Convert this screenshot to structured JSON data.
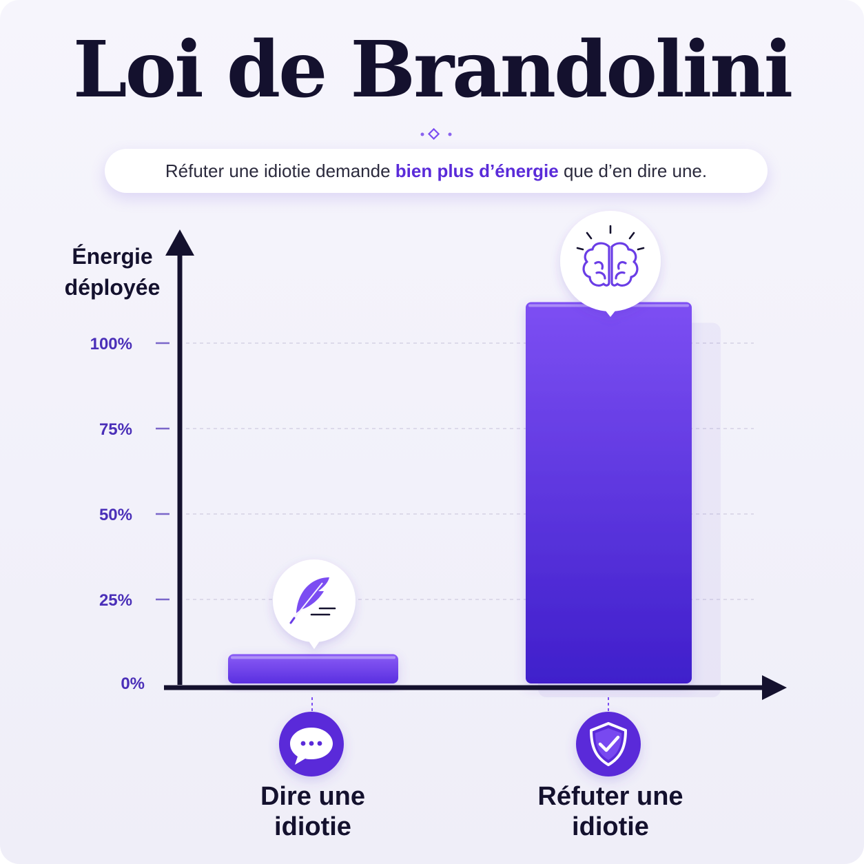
{
  "title": "Loi de Brandolini",
  "subtitle": {
    "before": "Réfuter une idiotie demande ",
    "highlight": "bien plus d’énergie",
    "after": " que d’en dire une."
  },
  "chart_data": {
    "type": "bar",
    "ylabel_line1": "Énergie",
    "ylabel_line2": "déployée",
    "y_ticks": [
      "0%",
      "25%",
      "50%",
      "75%",
      "100%"
    ],
    "ylim": [
      0,
      100
    ],
    "grid": true,
    "categories": [
      {
        "line1": "Dire une",
        "line2": "idiotie"
      },
      {
        "line1": "Réfuter une",
        "line2": "idiotie"
      }
    ],
    "values": [
      9,
      112
    ],
    "bar_top_icons": [
      "feather-icon",
      "brain-icon"
    ],
    "category_icons": [
      "speech-bubble-icon",
      "shield-check-icon"
    ]
  },
  "colors": {
    "accent": "#5a2bd9",
    "bar_light": "#7b4df2",
    "bar_dark": "#3d1dc9",
    "axis": "#14112e",
    "tick_label": "#4a2fb8"
  }
}
